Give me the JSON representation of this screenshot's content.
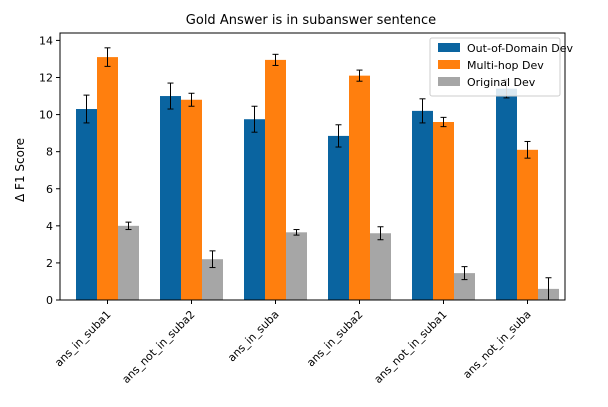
{
  "chart_data": {
    "type": "bar",
    "title": "Gold Answer is in subanswer sentence",
    "xlabel": "",
    "ylabel": "Δ F1 Score",
    "ylim": [
      0,
      14.4
    ],
    "yticks": [
      0,
      2,
      4,
      6,
      8,
      10,
      12,
      14
    ],
    "grid": false,
    "legend_position": "top-right",
    "categories": [
      "ans_in_suba1",
      "ans_not_in_suba2",
      "ans_in_suba",
      "ans_in_suba2",
      "ans_not_in_suba1",
      "ans_not_in_suba"
    ],
    "series": [
      {
        "name": "Out-of-Domain Dev",
        "color": "#0a64a0",
        "values": [
          10.3,
          11.0,
          9.75,
          8.85,
          10.2,
          11.4
        ],
        "errors": [
          0.75,
          0.7,
          0.7,
          0.6,
          0.65,
          0.5
        ]
      },
      {
        "name": "Multi-hop Dev",
        "color": "#ff7f0e",
        "values": [
          13.1,
          10.8,
          12.95,
          12.1,
          9.6,
          8.1
        ],
        "errors": [
          0.5,
          0.35,
          0.3,
          0.3,
          0.25,
          0.45
        ]
      },
      {
        "name": "Original Dev",
        "color": "#a6a6a6",
        "values": [
          4.0,
          2.2,
          3.65,
          3.6,
          1.45,
          0.6
        ],
        "errors": [
          0.2,
          0.45,
          0.15,
          0.35,
          0.35,
          0.6
        ]
      }
    ]
  }
}
